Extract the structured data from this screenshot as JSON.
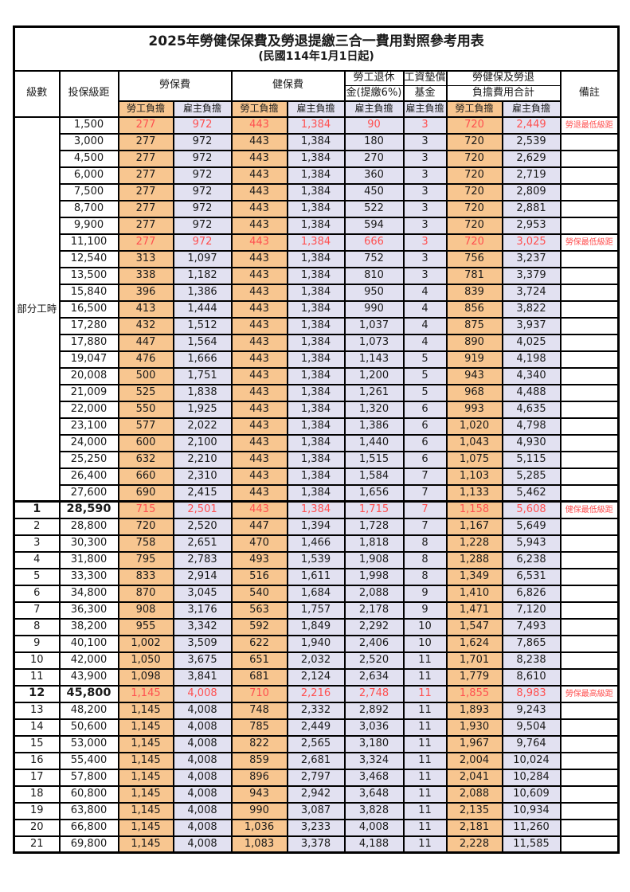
{
  "page": {
    "title_line1": "2025年勞健保保費及勞退提繳三合一費用對照參考用表",
    "title_line2": "(民國114年1月1日起)"
  },
  "colors": {
    "employee_bg": "#F8C690",
    "employer_bg": "#E2E1F1",
    "highlight_text": "#FF5050",
    "border": "#000000",
    "text": "#1A1A1A"
  },
  "header": {
    "level": "級數",
    "bracket": "投保級距",
    "labor_insurance": "勞保費",
    "health_insurance": "健保費",
    "pension_line1": "勞工退休",
    "pension_line2": "金(提繳6%)",
    "wage_fund_line1": "工資墊償",
    "wage_fund_line2": "基金",
    "total_line1": "勞健保及勞退",
    "total_line2": "負擔費用合計",
    "note": "備註",
    "employee_share": "勞工負擔",
    "employer_share": "雇主負擔"
  },
  "part_time_label": "部分工時",
  "part_time_rowspan": 23,
  "rows": [
    {
      "level": "",
      "bracket": "1,500",
      "values": [
        "277",
        "972",
        "443",
        "1,384",
        "90",
        "3",
        "720",
        "2,449"
      ],
      "note": "勞退最低級距",
      "hl": true,
      "bold": false,
      "thick_top": false
    },
    {
      "level": "",
      "bracket": "3,000",
      "values": [
        "277",
        "972",
        "443",
        "1,384",
        "180",
        "3",
        "720",
        "2,539"
      ],
      "note": "",
      "hl": false,
      "bold": false,
      "thick_top": false
    },
    {
      "level": "",
      "bracket": "4,500",
      "values": [
        "277",
        "972",
        "443",
        "1,384",
        "270",
        "3",
        "720",
        "2,629"
      ],
      "note": "",
      "hl": false,
      "bold": false,
      "thick_top": false
    },
    {
      "level": "",
      "bracket": "6,000",
      "values": [
        "277",
        "972",
        "443",
        "1,384",
        "360",
        "3",
        "720",
        "2,719"
      ],
      "note": "",
      "hl": false,
      "bold": false,
      "thick_top": false
    },
    {
      "level": "",
      "bracket": "7,500",
      "values": [
        "277",
        "972",
        "443",
        "1,384",
        "450",
        "3",
        "720",
        "2,809"
      ],
      "note": "",
      "hl": false,
      "bold": false,
      "thick_top": false
    },
    {
      "level": "",
      "bracket": "8,700",
      "values": [
        "277",
        "972",
        "443",
        "1,384",
        "522",
        "3",
        "720",
        "2,881"
      ],
      "note": "",
      "hl": false,
      "bold": false,
      "thick_top": false
    },
    {
      "level": "",
      "bracket": "9,900",
      "values": [
        "277",
        "972",
        "443",
        "1,384",
        "594",
        "3",
        "720",
        "2,953"
      ],
      "note": "",
      "hl": false,
      "bold": false,
      "thick_top": false
    },
    {
      "level": "",
      "bracket": "11,100",
      "values": [
        "277",
        "972",
        "443",
        "1,384",
        "666",
        "3",
        "720",
        "3,025"
      ],
      "note": "勞保最低級距",
      "hl": true,
      "bold": false,
      "thick_top": false
    },
    {
      "level": "",
      "bracket": "12,540",
      "values": [
        "313",
        "1,097",
        "443",
        "1,384",
        "752",
        "3",
        "756",
        "3,237"
      ],
      "note": "",
      "hl": false,
      "bold": false,
      "thick_top": false
    },
    {
      "level": "",
      "bracket": "13,500",
      "values": [
        "338",
        "1,182",
        "443",
        "1,384",
        "810",
        "3",
        "781",
        "3,379"
      ],
      "note": "",
      "hl": false,
      "bold": false,
      "thick_top": false
    },
    {
      "level": "",
      "bracket": "15,840",
      "values": [
        "396",
        "1,386",
        "443",
        "1,384",
        "950",
        "4",
        "839",
        "3,724"
      ],
      "note": "",
      "hl": false,
      "bold": false,
      "thick_top": false
    },
    {
      "level": "",
      "bracket": "16,500",
      "values": [
        "413",
        "1,444",
        "443",
        "1,384",
        "990",
        "4",
        "856",
        "3,822"
      ],
      "note": "",
      "hl": false,
      "bold": false,
      "thick_top": false
    },
    {
      "level": "",
      "bracket": "17,280",
      "values": [
        "432",
        "1,512",
        "443",
        "1,384",
        "1,037",
        "4",
        "875",
        "3,937"
      ],
      "note": "",
      "hl": false,
      "bold": false,
      "thick_top": false
    },
    {
      "level": "",
      "bracket": "17,880",
      "values": [
        "447",
        "1,564",
        "443",
        "1,384",
        "1,073",
        "4",
        "890",
        "4,025"
      ],
      "note": "",
      "hl": false,
      "bold": false,
      "thick_top": false
    },
    {
      "level": "",
      "bracket": "19,047",
      "values": [
        "476",
        "1,666",
        "443",
        "1,384",
        "1,143",
        "5",
        "919",
        "4,198"
      ],
      "note": "",
      "hl": false,
      "bold": false,
      "thick_top": false
    },
    {
      "level": "",
      "bracket": "20,008",
      "values": [
        "500",
        "1,751",
        "443",
        "1,384",
        "1,200",
        "5",
        "943",
        "4,340"
      ],
      "note": "",
      "hl": false,
      "bold": false,
      "thick_top": false
    },
    {
      "level": "",
      "bracket": "21,009",
      "values": [
        "525",
        "1,838",
        "443",
        "1,384",
        "1,261",
        "5",
        "968",
        "4,488"
      ],
      "note": "",
      "hl": false,
      "bold": false,
      "thick_top": false
    },
    {
      "level": "",
      "bracket": "22,000",
      "values": [
        "550",
        "1,925",
        "443",
        "1,384",
        "1,320",
        "6",
        "993",
        "4,635"
      ],
      "note": "",
      "hl": false,
      "bold": false,
      "thick_top": false
    },
    {
      "level": "",
      "bracket": "23,100",
      "values": [
        "577",
        "2,022",
        "443",
        "1,384",
        "1,386",
        "6",
        "1,020",
        "4,798"
      ],
      "note": "",
      "hl": false,
      "bold": false,
      "thick_top": false
    },
    {
      "level": "",
      "bracket": "24,000",
      "values": [
        "600",
        "2,100",
        "443",
        "1,384",
        "1,440",
        "6",
        "1,043",
        "4,930"
      ],
      "note": "",
      "hl": false,
      "bold": false,
      "thick_top": false
    },
    {
      "level": "",
      "bracket": "25,250",
      "values": [
        "632",
        "2,210",
        "443",
        "1,384",
        "1,515",
        "6",
        "1,075",
        "5,115"
      ],
      "note": "",
      "hl": false,
      "bold": false,
      "thick_top": false
    },
    {
      "level": "",
      "bracket": "26,400",
      "values": [
        "660",
        "2,310",
        "443",
        "1,384",
        "1,584",
        "7",
        "1,103",
        "5,285"
      ],
      "note": "",
      "hl": false,
      "bold": false,
      "thick_top": false
    },
    {
      "level": "",
      "bracket": "27,600",
      "values": [
        "690",
        "2,415",
        "443",
        "1,384",
        "1,656",
        "7",
        "1,133",
        "5,462"
      ],
      "note": "",
      "hl": false,
      "bold": false,
      "thick_top": false
    },
    {
      "level": "1",
      "bracket": "28,590",
      "values": [
        "715",
        "2,501",
        "443",
        "1,384",
        "1,715",
        "7",
        "1,158",
        "5,608"
      ],
      "note": "健保最低級距",
      "hl": true,
      "bold": true,
      "thick_top": true
    },
    {
      "level": "2",
      "bracket": "28,800",
      "values": [
        "720",
        "2,520",
        "447",
        "1,394",
        "1,728",
        "7",
        "1,167",
        "5,649"
      ],
      "note": "",
      "hl": false,
      "bold": false,
      "thick_top": false
    },
    {
      "level": "3",
      "bracket": "30,300",
      "values": [
        "758",
        "2,651",
        "470",
        "1,466",
        "1,818",
        "8",
        "1,228",
        "5,943"
      ],
      "note": "",
      "hl": false,
      "bold": false,
      "thick_top": false
    },
    {
      "level": "4",
      "bracket": "31,800",
      "values": [
        "795",
        "2,783",
        "493",
        "1,539",
        "1,908",
        "8",
        "1,288",
        "6,238"
      ],
      "note": "",
      "hl": false,
      "bold": false,
      "thick_top": false
    },
    {
      "level": "5",
      "bracket": "33,300",
      "values": [
        "833",
        "2,914",
        "516",
        "1,611",
        "1,998",
        "8",
        "1,349",
        "6,531"
      ],
      "note": "",
      "hl": false,
      "bold": false,
      "thick_top": false
    },
    {
      "level": "6",
      "bracket": "34,800",
      "values": [
        "870",
        "3,045",
        "540",
        "1,684",
        "2,088",
        "9",
        "1,410",
        "6,826"
      ],
      "note": "",
      "hl": false,
      "bold": false,
      "thick_top": false
    },
    {
      "level": "7",
      "bracket": "36,300",
      "values": [
        "908",
        "3,176",
        "563",
        "1,757",
        "2,178",
        "9",
        "1,471",
        "7,120"
      ],
      "note": "",
      "hl": false,
      "bold": false,
      "thick_top": false
    },
    {
      "level": "8",
      "bracket": "38,200",
      "values": [
        "955",
        "3,342",
        "592",
        "1,849",
        "2,292",
        "10",
        "1,547",
        "7,493"
      ],
      "note": "",
      "hl": false,
      "bold": false,
      "thick_top": false
    },
    {
      "level": "9",
      "bracket": "40,100",
      "values": [
        "1,002",
        "3,509",
        "622",
        "1,940",
        "2,406",
        "10",
        "1,624",
        "7,865"
      ],
      "note": "",
      "hl": false,
      "bold": false,
      "thick_top": false
    },
    {
      "level": "10",
      "bracket": "42,000",
      "values": [
        "1,050",
        "3,675",
        "651",
        "2,032",
        "2,520",
        "11",
        "1,701",
        "8,238"
      ],
      "note": "",
      "hl": false,
      "bold": false,
      "thick_top": false
    },
    {
      "level": "11",
      "bracket": "43,900",
      "values": [
        "1,098",
        "3,841",
        "681",
        "2,124",
        "2,634",
        "11",
        "1,779",
        "8,610"
      ],
      "note": "",
      "hl": false,
      "bold": false,
      "thick_top": false
    },
    {
      "level": "12",
      "bracket": "45,800",
      "values": [
        "1,145",
        "4,008",
        "710",
        "2,216",
        "2,748",
        "11",
        "1,855",
        "8,983"
      ],
      "note": "勞保最高級距",
      "hl": true,
      "bold": true,
      "thick_top": false
    },
    {
      "level": "13",
      "bracket": "48,200",
      "values": [
        "1,145",
        "4,008",
        "748",
        "2,332",
        "2,892",
        "11",
        "1,893",
        "9,243"
      ],
      "note": "",
      "hl": false,
      "bold": false,
      "thick_top": false
    },
    {
      "level": "14",
      "bracket": "50,600",
      "values": [
        "1,145",
        "4,008",
        "785",
        "2,449",
        "3,036",
        "11",
        "1,930",
        "9,504"
      ],
      "note": "",
      "hl": false,
      "bold": false,
      "thick_top": false
    },
    {
      "level": "15",
      "bracket": "53,000",
      "values": [
        "1,145",
        "4,008",
        "822",
        "2,565",
        "3,180",
        "11",
        "1,967",
        "9,764"
      ],
      "note": "",
      "hl": false,
      "bold": false,
      "thick_top": false
    },
    {
      "level": "16",
      "bracket": "55,400",
      "values": [
        "1,145",
        "4,008",
        "859",
        "2,681",
        "3,324",
        "11",
        "2,004",
        "10,024"
      ],
      "note": "",
      "hl": false,
      "bold": false,
      "thick_top": false
    },
    {
      "level": "17",
      "bracket": "57,800",
      "values": [
        "1,145",
        "4,008",
        "896",
        "2,797",
        "3,468",
        "11",
        "2,041",
        "10,284"
      ],
      "note": "",
      "hl": false,
      "bold": false,
      "thick_top": false
    },
    {
      "level": "18",
      "bracket": "60,800",
      "values": [
        "1,145",
        "4,008",
        "943",
        "2,942",
        "3,648",
        "11",
        "2,088",
        "10,609"
      ],
      "note": "",
      "hl": false,
      "bold": false,
      "thick_top": false
    },
    {
      "level": "19",
      "bracket": "63,800",
      "values": [
        "1,145",
        "4,008",
        "990",
        "3,087",
        "3,828",
        "11",
        "2,135",
        "10,934"
      ],
      "note": "",
      "hl": false,
      "bold": false,
      "thick_top": false
    },
    {
      "level": "20",
      "bracket": "66,800",
      "values": [
        "1,145",
        "4,008",
        "1,036",
        "3,233",
        "4,008",
        "11",
        "2,181",
        "11,260"
      ],
      "note": "",
      "hl": false,
      "bold": false,
      "thick_top": false
    },
    {
      "level": "21",
      "bracket": "69,800",
      "values": [
        "1,145",
        "4,008",
        "1,083",
        "3,378",
        "4,188",
        "11",
        "2,228",
        "11,585"
      ],
      "note": "",
      "hl": false,
      "bold": false,
      "thick_top": false
    }
  ]
}
